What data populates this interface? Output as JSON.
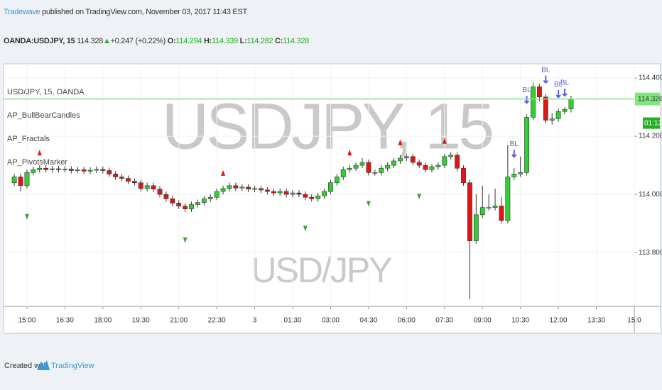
{
  "header": {
    "author": "Tradewave",
    "published": "published on TradingView.com, November 03, 2017 11:43 EST",
    "symbol": "OANDA:USDJPY, 15",
    "last": "114.328",
    "arrow": "▲",
    "change": "+0.247 (+0.22%)",
    "o_label": "O:",
    "o": "114.294",
    "h_label": "H:",
    "h": "114.339",
    "l_label": "L:",
    "l": "114.282",
    "c_label": "C:",
    "c": "114.328"
  },
  "chart_data": {
    "type": "candlestick",
    "watermark": "USDJPY, 15",
    "watermark_sub": "USD/JPY",
    "legend": [
      "USD/JPY, 15, OANDA",
      "AP_BullBearCandles",
      "AP_Fractals",
      "AP_PivotsMarker"
    ],
    "up_color": "#2fd12f",
    "down_color": "#e01515",
    "flat_color": "#b5b5b5",
    "open": [
      114.04,
      114.06,
      114.03,
      114.075,
      114.085,
      114.09,
      114.085,
      114.088,
      114.085,
      114.087,
      114.082,
      114.085,
      114.08,
      114.083,
      114.086,
      114.082,
      114.07,
      114.06,
      114.055,
      114.045,
      114.04,
      114.02,
      114.03,
      114.018,
      114.0,
      113.985,
      113.97,
      113.96,
      113.95,
      113.965,
      113.972,
      113.985,
      113.99,
      114.01,
      114.02,
      114.03,
      114.022,
      114.025,
      114.018,
      114.02,
      114.015,
      114.01,
      114.005,
      114.01,
      114.0,
      114.005,
      114.0,
      113.99,
      113.985,
      113.995,
      114.01,
      114.04,
      114.06,
      114.085,
      114.09,
      114.1,
      114.11,
      114.075,
      114.075,
      114.09,
      114.1,
      114.115,
      114.125,
      114.13,
      114.11,
      114.1,
      114.085,
      114.095,
      114.1,
      114.13,
      114.135,
      114.09,
      114.04,
      113.84,
      113.93,
      113.955,
      113.955,
      113.96,
      113.91,
      114.06,
      114.07,
      114.075,
      114.265,
      114.37,
      114.335,
      114.255,
      114.26,
      114.285,
      114.294
    ],
    "high": [
      114.07,
      114.07,
      114.085,
      114.095,
      114.1,
      114.1,
      114.098,
      114.098,
      114.097,
      114.097,
      114.095,
      114.095,
      114.093,
      114.096,
      114.096,
      114.092,
      114.08,
      114.07,
      114.065,
      114.055,
      114.05,
      114.04,
      114.04,
      114.028,
      114.01,
      113.995,
      113.98,
      113.97,
      113.975,
      113.982,
      113.995,
      114.0,
      114.02,
      114.03,
      114.04,
      114.04,
      114.035,
      114.035,
      114.03,
      114.03,
      114.025,
      114.02,
      114.02,
      114.02,
      114.015,
      114.015,
      114.01,
      114.0,
      114.005,
      114.02,
      114.05,
      114.07,
      114.095,
      114.1,
      114.11,
      114.125,
      114.12,
      114.085,
      114.1,
      114.11,
      114.125,
      114.135,
      114.14,
      114.14,
      114.12,
      114.11,
      114.105,
      114.11,
      114.14,
      114.145,
      114.145,
      114.1,
      114.05,
      114.0,
      114.03,
      114.0,
      114.02,
      113.99,
      114.17,
      114.09,
      114.13,
      114.275,
      114.385,
      114.38,
      114.345,
      114.28,
      114.295,
      114.3,
      114.339
    ],
    "low": [
      114.03,
      114.01,
      114.02,
      114.065,
      114.075,
      114.075,
      114.075,
      114.075,
      114.075,
      114.072,
      114.072,
      114.07,
      114.07,
      114.073,
      114.072,
      114.06,
      114.05,
      114.045,
      114.035,
      114.03,
      114.01,
      114.01,
      114.008,
      113.99,
      113.975,
      113.96,
      113.95,
      113.94,
      113.94,
      113.955,
      113.962,
      113.975,
      113.98,
      114.0,
      114.01,
      114.012,
      114.012,
      114.008,
      114.008,
      114.005,
      114.0,
      113.995,
      113.995,
      113.99,
      113.99,
      113.99,
      113.98,
      113.975,
      113.975,
      113.985,
      114.0,
      114.03,
      114.05,
      114.075,
      114.08,
      114.09,
      114.065,
      114.065,
      114.065,
      114.08,
      114.09,
      114.105,
      114.115,
      114.1,
      114.09,
      114.075,
      114.075,
      114.085,
      114.09,
      114.12,
      114.08,
      114.03,
      113.64,
      113.83,
      113.92,
      113.945,
      113.945,
      113.9,
      113.9,
      114.05,
      114.06,
      114.065,
      114.255,
      114.32,
      114.245,
      114.24,
      114.25,
      114.275,
      114.282
    ],
    "close": [
      114.06,
      114.03,
      114.075,
      114.085,
      114.09,
      114.085,
      114.088,
      114.085,
      114.087,
      114.082,
      114.085,
      114.08,
      114.083,
      114.086,
      114.082,
      114.07,
      114.06,
      114.055,
      114.045,
      114.04,
      114.02,
      114.03,
      114.018,
      114.0,
      113.985,
      113.97,
      113.96,
      113.95,
      113.965,
      113.972,
      113.985,
      113.99,
      114.01,
      114.02,
      114.03,
      114.022,
      114.025,
      114.018,
      114.02,
      114.015,
      114.01,
      114.005,
      114.01,
      114.0,
      114.005,
      114.0,
      113.99,
      113.985,
      113.995,
      114.01,
      114.04,
      114.06,
      114.085,
      114.09,
      114.1,
      114.11,
      114.075,
      114.075,
      114.09,
      114.1,
      114.115,
      114.125,
      114.13,
      114.11,
      114.1,
      114.085,
      114.095,
      114.1,
      114.13,
      114.135,
      114.09,
      114.04,
      113.84,
      113.93,
      113.955,
      113.955,
      113.96,
      113.91,
      114.06,
      114.07,
      114.075,
      114.265,
      114.37,
      114.335,
      114.255,
      114.26,
      114.285,
      114.292,
      114.328
    ],
    "fractals_up": [
      4,
      33,
      53,
      61,
      68
    ],
    "fractal_up_color": "#e01515",
    "fractals_down": [
      2,
      27,
      46,
      56,
      64
    ],
    "fractal_down_color": "#3aa83a",
    "bl_label": "BL",
    "bl_signals": [
      79,
      81,
      84,
      86,
      87
    ],
    "bl_color": "#5a5ae0",
    "last_price": {
      "value": 114.328,
      "label": "114.328"
    },
    "countdown": "01:12",
    "last_color": "#7ee87e",
    "xlim": [
      -1.7,
      98
    ],
    "ylim": [
      113.615,
      114.449
    ],
    "yticks": [
      {
        "value": 113.8,
        "label": "113.800"
      },
      {
        "value": 114.0,
        "label": "114.000"
      },
      {
        "value": 114.2,
        "label": "114.200"
      },
      {
        "value": 114.4,
        "label": "114.400"
      }
    ],
    "xticks": [
      {
        "value": 2,
        "label": "15:00"
      },
      {
        "value": 8,
        "label": "16:30"
      },
      {
        "value": 14,
        "label": "18:00"
      },
      {
        "value": 20,
        "label": "19:30"
      },
      {
        "value": 26,
        "label": "21:00"
      },
      {
        "value": 32,
        "label": "22:30"
      },
      {
        "value": 38,
        "label": "3"
      },
      {
        "value": 44,
        "label": "01:30"
      },
      {
        "value": 50,
        "label": "03:00"
      },
      {
        "value": 56,
        "label": "04:30"
      },
      {
        "value": 62,
        "label": "06:00"
      },
      {
        "value": 68,
        "label": "07:30"
      },
      {
        "value": 74,
        "label": "09:00"
      },
      {
        "value": 80,
        "label": "10:30"
      },
      {
        "value": 86,
        "label": "12:00"
      },
      {
        "value": 92,
        "label": "13:30"
      },
      {
        "value": 98,
        "label": "15:0"
      }
    ],
    "grid": true
  },
  "footer": {
    "created": "Created with",
    "brand": "TradingView"
  }
}
